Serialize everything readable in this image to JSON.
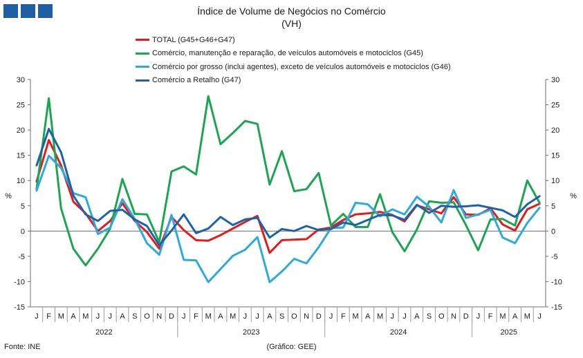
{
  "header": {
    "title": "Índice de Volume de Negócios no Comércio",
    "subtitle": "(VH)",
    "logo_color": "#1f5fa5"
  },
  "footer": {
    "source": "Fonte: INE",
    "credit": "(Gráfico: GEE)"
  },
  "chart_data": {
    "type": "line",
    "y_axis": {
      "min": -15,
      "max": 30,
      "step": 5,
      "ticks": [
        "-15",
        "-10",
        "-5",
        "0",
        "5",
        "10",
        "15",
        "20",
        "25",
        "30"
      ],
      "left_label": "%",
      "right_label": "%"
    },
    "x": [
      "J",
      "F",
      "M",
      "A",
      "M",
      "J",
      "J",
      "A",
      "S",
      "O",
      "N",
      "D",
      "J",
      "F",
      "M",
      "A",
      "M",
      "J",
      "J",
      "A",
      "S",
      "O",
      "N",
      "D",
      "J",
      "F",
      "M",
      "A",
      "M",
      "J",
      "J",
      "A",
      "S",
      "O",
      "N",
      "D",
      "J",
      "F",
      "M",
      "A",
      "M",
      "J"
    ],
    "years": [
      {
        "label": "2022",
        "start": 0,
        "end": 11
      },
      {
        "label": "2023",
        "start": 12,
        "end": 23
      },
      {
        "label": "2024",
        "start": 24,
        "end": 35
      },
      {
        "label": "2025",
        "start": 36,
        "end": 41
      }
    ],
    "series": [
      {
        "name": "TOTAL (G45+G46+G47)",
        "color": "#e8191b",
        "values": [
          9.8,
          18.0,
          13.0,
          5.8,
          3.5,
          0.0,
          2.0,
          5.5,
          2.0,
          -0.2,
          -3.5,
          2.8,
          0.2,
          -1.8,
          -1.9,
          -0.8,
          0.5,
          1.8,
          3.0,
          -4.3,
          -1.8,
          -1.7,
          -1.6,
          0.3,
          0.7,
          2.2,
          3.3,
          3.5,
          3.8,
          3.2,
          1.9,
          5.1,
          4.3,
          3.5,
          6.7,
          3.3,
          3.2,
          4.5,
          1.3,
          0.1,
          4.3,
          5.4
        ]
      },
      {
        "name": "Comércio, manutenção e reparação, de veículos automóveis e motociclos (G45)",
        "color": "#1aa651",
        "values": [
          8.3,
          26.3,
          4.5,
          -3.5,
          -6.8,
          -3.5,
          0.5,
          10.3,
          3.4,
          3.3,
          -2.2,
          11.8,
          12.8,
          11.2,
          26.7,
          17.2,
          19.4,
          21.8,
          21.2,
          9.2,
          15.8,
          7.9,
          8.3,
          11.5,
          1.1,
          3.4,
          0.8,
          0.8,
          7.3,
          -0.2,
          -4.0,
          0.3,
          5.9,
          5.6,
          5.7,
          1.2,
          -3.8,
          2.3,
          2.4,
          1.1,
          10.0,
          5.6
        ]
      },
      {
        "name": "Comércio por grosso (inclui agentes), exceto de veículos automóveis e motociclos (G46)",
        "color": "#29abe2",
        "values": [
          8.0,
          14.9,
          12.5,
          7.5,
          6.7,
          -0.6,
          0.7,
          6.3,
          2.4,
          -2.4,
          -4.7,
          3.2,
          -5.7,
          -5.8,
          -10.1,
          -7.5,
          -4.9,
          -3.7,
          -1.2,
          -10.1,
          -8.0,
          -5.5,
          -6.4,
          -3.2,
          0.6,
          0.7,
          5.6,
          5.3,
          2.9,
          4.3,
          3.3,
          6.8,
          4.8,
          1.7,
          8.1,
          2.6,
          3.3,
          4.2,
          -1.3,
          -2.4,
          1.6,
          4.6
        ]
      },
      {
        "name": "Comércio a Retalho (G47)",
        "color": "#1b62a8",
        "values": [
          13.0,
          20.2,
          15.6,
          7.0,
          3.3,
          2.0,
          4.0,
          4.2,
          2.3,
          1.0,
          -2.8,
          0.1,
          3.3,
          -0.4,
          0.5,
          2.8,
          1.2,
          2.3,
          2.6,
          -1.3,
          0.4,
          0.0,
          1.0,
          0.2,
          0.4,
          1.7,
          1.2,
          2.2,
          3.2,
          3.1,
          2.2,
          5.2,
          3.6,
          5.0,
          4.8,
          4.9,
          5.1,
          4.6,
          4.1,
          2.8,
          5.3,
          6.9
        ]
      }
    ],
    "grid": false,
    "legend_position": "top-center"
  }
}
